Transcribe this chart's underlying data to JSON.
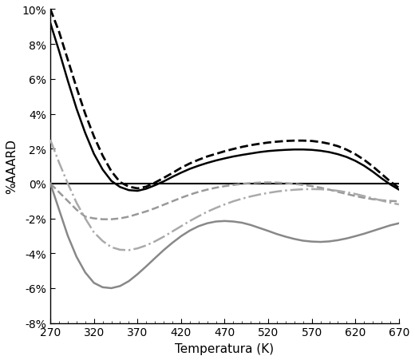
{
  "title": "",
  "xlabel": "Temperatura (K)",
  "ylabel": "%AAARD",
  "xlim": [
    270,
    670
  ],
  "ylim": [
    -8,
    10
  ],
  "yticks": [
    -8,
    -6,
    -4,
    -2,
    0,
    2,
    4,
    6,
    8,
    10
  ],
  "xticks": [
    270,
    320,
    370,
    420,
    470,
    520,
    570,
    620,
    670
  ],
  "lines": [
    {
      "label": "black_solid",
      "color": "#000000",
      "linestyle": "solid",
      "linewidth": 1.8,
      "x": [
        270,
        280,
        290,
        300,
        310,
        320,
        330,
        340,
        350,
        360,
        370,
        380,
        390,
        400,
        410,
        420,
        430,
        440,
        450,
        460,
        470,
        480,
        490,
        500,
        510,
        520,
        530,
        540,
        550,
        560,
        570,
        580,
        590,
        600,
        610,
        620,
        630,
        640,
        650,
        660,
        670
      ],
      "y": [
        9.2,
        7.6,
        5.9,
        4.3,
        2.9,
        1.7,
        0.8,
        0.15,
        -0.2,
        -0.38,
        -0.42,
        -0.3,
        -0.1,
        0.12,
        0.38,
        0.62,
        0.84,
        1.02,
        1.18,
        1.32,
        1.44,
        1.55,
        1.64,
        1.72,
        1.8,
        1.86,
        1.9,
        1.93,
        1.95,
        1.95,
        1.93,
        1.88,
        1.8,
        1.68,
        1.52,
        1.3,
        1.02,
        0.68,
        0.3,
        -0.05,
        -0.35
      ]
    },
    {
      "label": "black_dashed",
      "color": "#000000",
      "linestyle": "dashed",
      "linewidth": 2.0,
      "x": [
        270,
        280,
        290,
        300,
        310,
        320,
        330,
        340,
        350,
        360,
        370,
        380,
        390,
        400,
        410,
        420,
        430,
        440,
        450,
        460,
        470,
        480,
        490,
        500,
        510,
        520,
        530,
        540,
        550,
        560,
        570,
        580,
        590,
        600,
        610,
        620,
        630,
        640,
        650,
        660,
        670
      ],
      "y": [
        10.0,
        8.7,
        7.1,
        5.5,
        4.0,
        2.7,
        1.6,
        0.7,
        0.08,
        -0.18,
        -0.28,
        -0.18,
        0.05,
        0.32,
        0.6,
        0.9,
        1.15,
        1.36,
        1.55,
        1.7,
        1.85,
        1.98,
        2.1,
        2.2,
        2.28,
        2.35,
        2.4,
        2.44,
        2.46,
        2.46,
        2.44,
        2.38,
        2.28,
        2.14,
        1.94,
        1.68,
        1.36,
        0.98,
        0.55,
        0.12,
        -0.25
      ]
    },
    {
      "label": "gray_dashed",
      "color": "#999999",
      "linestyle": "dashed",
      "linewidth": 1.8,
      "x": [
        270,
        280,
        290,
        300,
        310,
        320,
        330,
        340,
        350,
        360,
        370,
        380,
        390,
        400,
        410,
        420,
        430,
        440,
        450,
        460,
        470,
        480,
        490,
        500,
        510,
        520,
        530,
        540,
        550,
        560,
        570,
        580,
        590,
        600,
        610,
        620,
        630,
        640,
        650,
        660,
        670
      ],
      "y": [
        0.0,
        -0.5,
        -1.0,
        -1.5,
        -1.9,
        -2.0,
        -2.05,
        -2.05,
        -2.0,
        -1.9,
        -1.75,
        -1.6,
        -1.42,
        -1.22,
        -1.02,
        -0.82,
        -0.64,
        -0.48,
        -0.35,
        -0.24,
        -0.15,
        -0.08,
        -0.02,
        0.02,
        0.05,
        0.06,
        0.05,
        0.02,
        -0.02,
        -0.08,
        -0.15,
        -0.24,
        -0.35,
        -0.48,
        -0.6,
        -0.72,
        -0.82,
        -0.9,
        -0.96,
        -1.0,
        -1.02
      ]
    },
    {
      "label": "gray_dashdot",
      "color": "#aaaaaa",
      "linestyle": "dashdot",
      "linewidth": 1.8,
      "x": [
        270,
        280,
        290,
        300,
        310,
        320,
        330,
        340,
        350,
        360,
        370,
        380,
        390,
        400,
        410,
        420,
        430,
        440,
        450,
        460,
        470,
        480,
        490,
        500,
        510,
        520,
        530,
        540,
        550,
        560,
        570,
        580,
        590,
        600,
        610,
        620,
        630,
        640,
        650,
        660,
        670
      ],
      "y": [
        2.5,
        1.2,
        0.0,
        -1.1,
        -2.0,
        -2.8,
        -3.3,
        -3.65,
        -3.8,
        -3.82,
        -3.72,
        -3.55,
        -3.32,
        -3.05,
        -2.75,
        -2.45,
        -2.15,
        -1.88,
        -1.62,
        -1.4,
        -1.2,
        -1.02,
        -0.87,
        -0.74,
        -0.63,
        -0.54,
        -0.46,
        -0.4,
        -0.36,
        -0.33,
        -0.32,
        -0.33,
        -0.36,
        -0.42,
        -0.5,
        -0.6,
        -0.72,
        -0.85,
        -0.98,
        -1.1,
        -1.2
      ]
    },
    {
      "label": "gray_solid",
      "color": "#888888",
      "linestyle": "solid",
      "linewidth": 1.8,
      "x": [
        270,
        280,
        290,
        300,
        310,
        320,
        330,
        340,
        350,
        360,
        370,
        380,
        390,
        400,
        410,
        420,
        430,
        440,
        450,
        460,
        470,
        480,
        490,
        500,
        510,
        520,
        530,
        540,
        550,
        560,
        570,
        580,
        590,
        600,
        610,
        620,
        630,
        640,
        650,
        660,
        670
      ],
      "y": [
        0.0,
        -1.5,
        -3.0,
        -4.2,
        -5.1,
        -5.7,
        -5.95,
        -6.0,
        -5.88,
        -5.6,
        -5.2,
        -4.75,
        -4.28,
        -3.82,
        -3.4,
        -3.02,
        -2.7,
        -2.45,
        -2.28,
        -2.18,
        -2.15,
        -2.18,
        -2.25,
        -2.38,
        -2.55,
        -2.72,
        -2.9,
        -3.05,
        -3.18,
        -3.28,
        -3.33,
        -3.35,
        -3.32,
        -3.25,
        -3.15,
        -3.02,
        -2.88,
        -2.72,
        -2.56,
        -2.4,
        -2.28
      ]
    }
  ],
  "zeroline_color": "#000000",
  "zeroline_linewidth": 1.5,
  "background_color": "#ffffff",
  "tick_fontsize": 10,
  "label_fontsize": 11
}
